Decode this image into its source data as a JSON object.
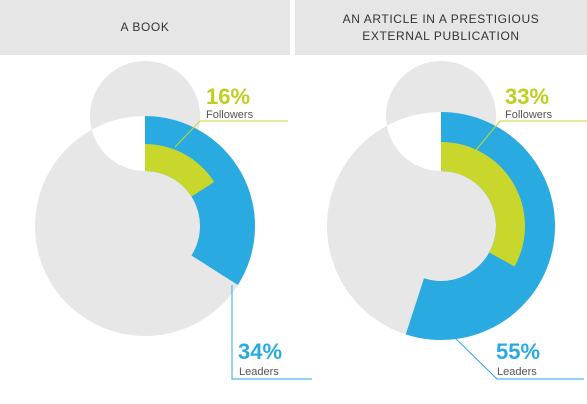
{
  "colors": {
    "leaders": "#29aae1",
    "followers": "#c9d62c",
    "remainder": "#e7e7e7",
    "leaders_text": "#29aae1",
    "followers_text": "#bfcf1f"
  },
  "chart_data": [
    {
      "type": "pie",
      "title": "A BOOK",
      "series": [
        {
          "name": "Followers",
          "value": 16
        },
        {
          "name": "Leaders",
          "value": 34
        }
      ],
      "labels": {
        "followers_pct": "16%",
        "followers": "Followers",
        "leaders_pct": "34%",
        "leaders": "Leaders"
      }
    },
    {
      "type": "pie",
      "title": "AN ARTICLE IN A PRESTIGIOUS\nEXTERNAL PUBLICATION",
      "series": [
        {
          "name": "Followers",
          "value": 33
        },
        {
          "name": "Leaders",
          "value": 55
        }
      ],
      "labels": {
        "followers_pct": "33%",
        "followers": "Followers",
        "leaders_pct": "55%",
        "leaders": "Leaders"
      }
    }
  ]
}
